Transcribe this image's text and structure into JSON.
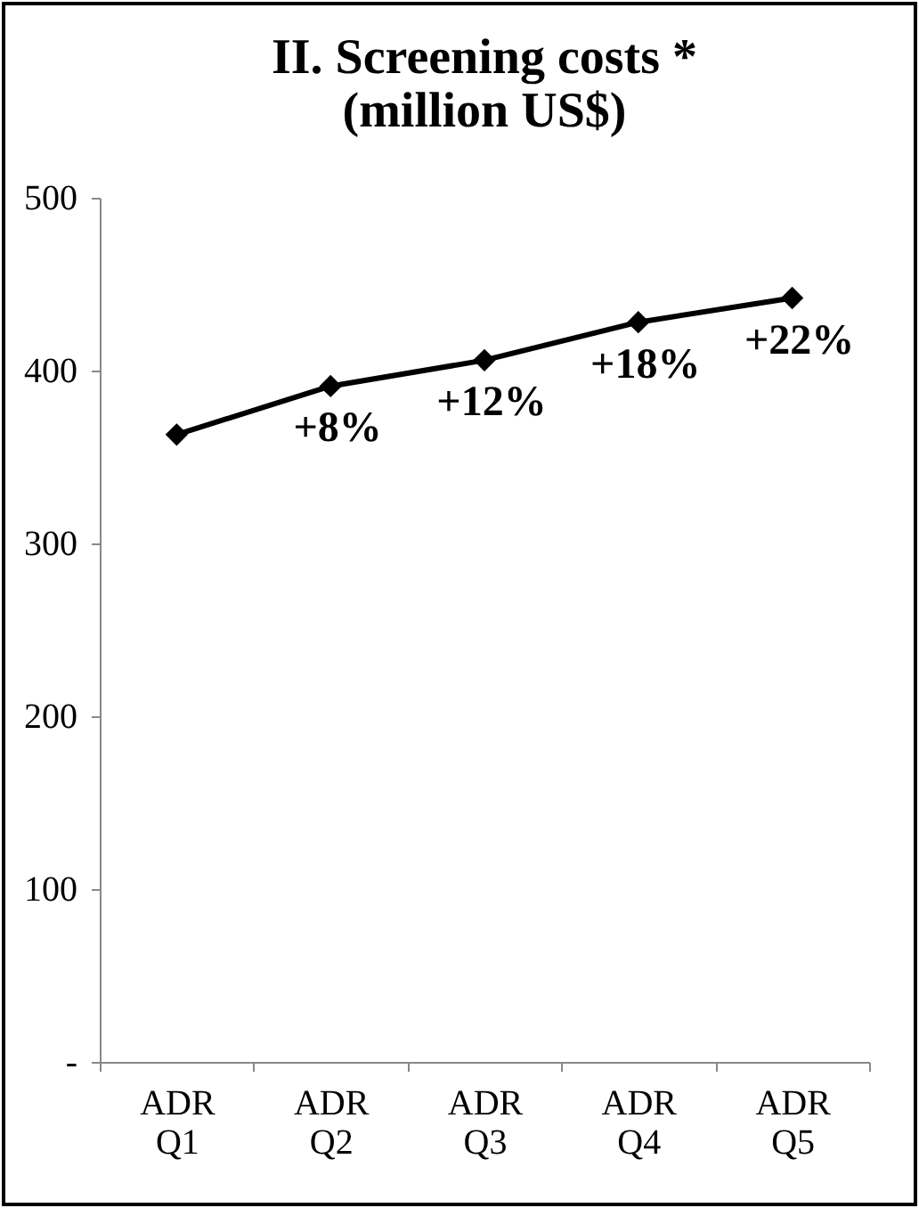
{
  "chart_data": {
    "type": "line",
    "title": "II. Screening costs *\n(million US$)",
    "categories": [
      "ADR Q1",
      "ADR Q2",
      "ADR Q3",
      "ADR Q4",
      "ADR Q5"
    ],
    "series": [
      {
        "color": "#000000",
        "values": [
          363,
          391,
          406,
          428,
          442
        ]
      }
    ],
    "ylim": [
      0,
      500
    ],
    "yticks": [
      {
        "value": 0,
        "label": "-"
      },
      100,
      200,
      300,
      400,
      500
    ],
    "grid": false,
    "marker": "diamond",
    "line_style": "solid",
    "annotations": [
      {
        "text": "+8%",
        "x": "ADR Q2",
        "y": 391
      },
      {
        "text": "+12%",
        "x": "ADR Q3",
        "y": 406
      },
      {
        "text": "+18%",
        "x": "ADR Q4",
        "y": 428
      },
      {
        "text": "+22%",
        "x": "ADR Q5",
        "y": 442
      }
    ]
  }
}
